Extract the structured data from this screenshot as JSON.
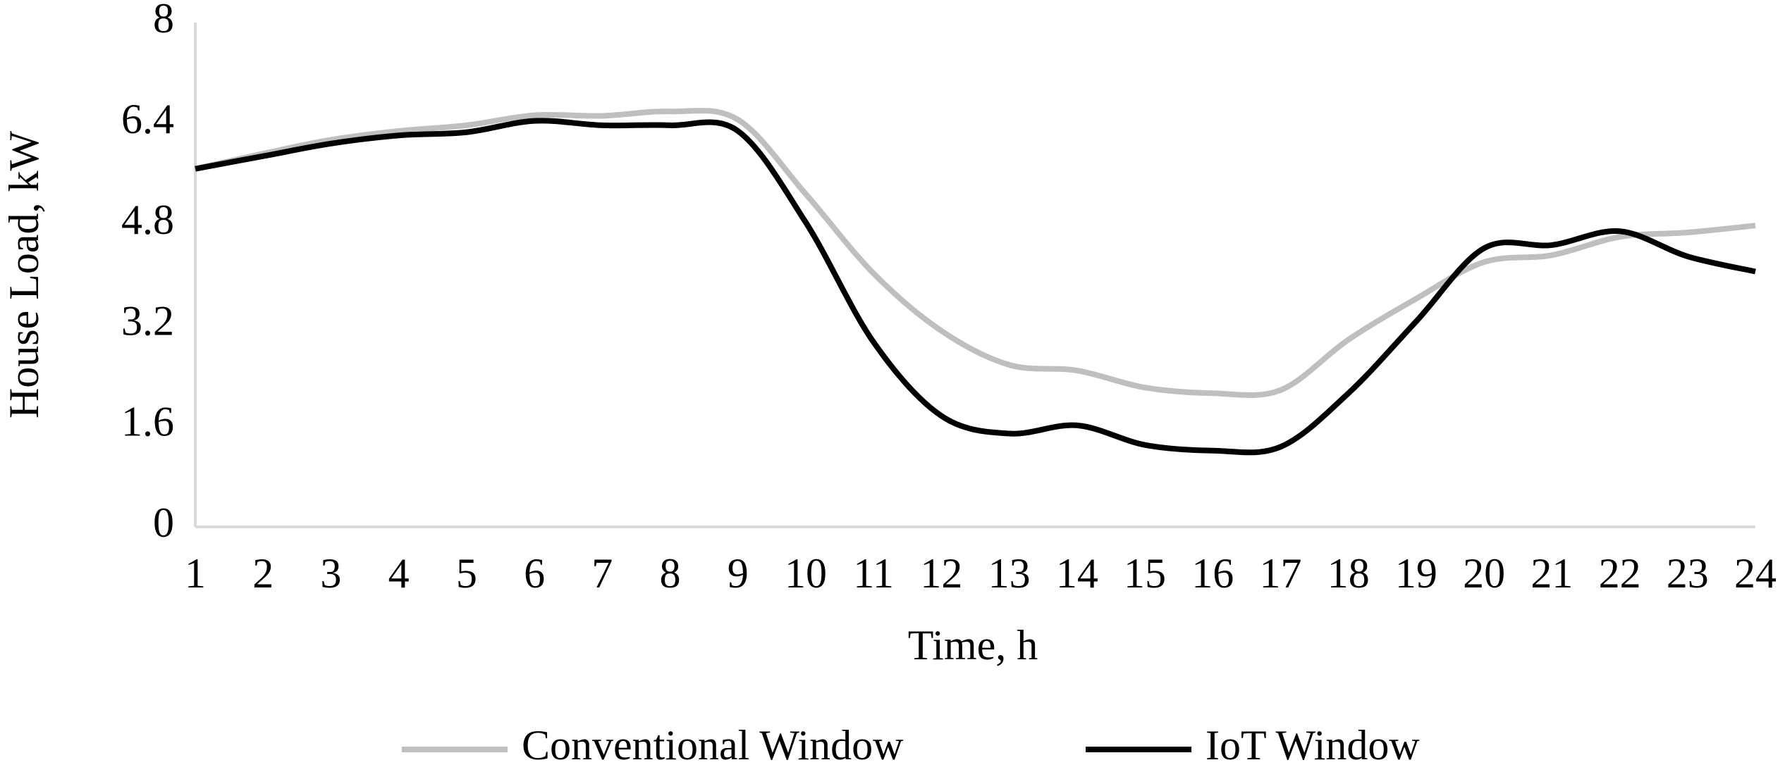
{
  "chart_data": {
    "type": "line",
    "x": [
      1,
      2,
      3,
      4,
      5,
      6,
      7,
      8,
      9,
      10,
      11,
      12,
      13,
      14,
      15,
      16,
      17,
      18,
      19,
      20,
      21,
      22,
      23,
      24
    ],
    "xlabel": "Time, h",
    "ylabel": "House Load, kW",
    "xlim": [
      1,
      24
    ],
    "xticks": [
      1,
      2,
      3,
      4,
      5,
      6,
      7,
      8,
      9,
      10,
      11,
      12,
      13,
      14,
      15,
      16,
      17,
      18,
      19,
      20,
      21,
      22,
      23,
      24
    ],
    "ylim": [
      0,
      8
    ],
    "yticks": [
      0,
      1.6,
      3.2,
      4.8,
      6.4,
      8
    ],
    "grid": false,
    "legend": "bottom",
    "series": [
      {
        "name": "Conventional Window",
        "color": "#bfbfbf",
        "values": [
          5.68,
          5.92,
          6.14,
          6.28,
          6.37,
          6.53,
          6.52,
          6.59,
          6.46,
          5.28,
          4.02,
          3.11,
          2.57,
          2.48,
          2.21,
          2.12,
          2.17,
          2.97,
          3.62,
          4.2,
          4.31,
          4.6,
          4.67,
          4.78
        ]
      },
      {
        "name": "IoT Window",
        "color": "#000000",
        "values": [
          5.68,
          5.88,
          6.08,
          6.21,
          6.26,
          6.44,
          6.37,
          6.37,
          6.28,
          4.83,
          2.93,
          1.76,
          1.48,
          1.61,
          1.3,
          1.21,
          1.27,
          2.12,
          3.26,
          4.42,
          4.47,
          4.69,
          4.29,
          4.05
        ]
      }
    ]
  }
}
